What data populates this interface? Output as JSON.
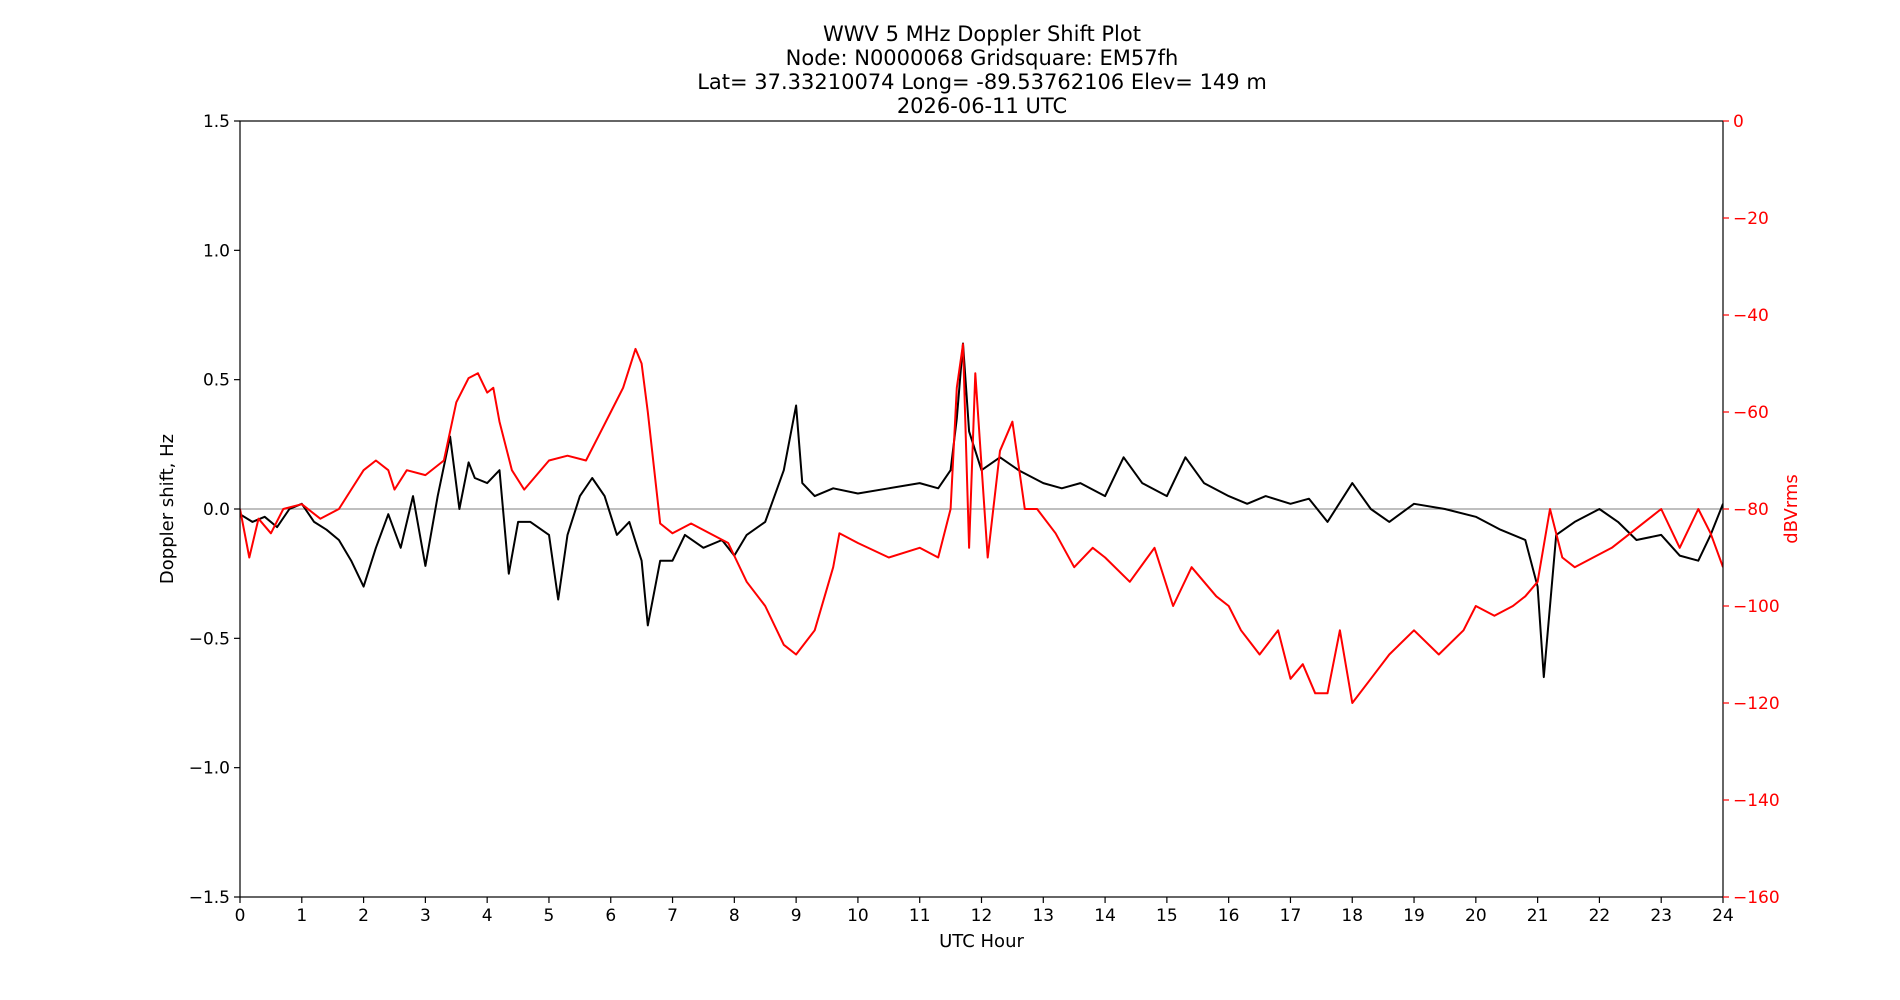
{
  "chart_data": {
    "type": "line",
    "title_lines": [
      "WWV 5 MHz Doppler Shift Plot",
      "Node:  N0000068     Gridsquare:  EM57fh",
      "Lat= 37.33210074    Long= -89.53762106    Elev= 149 m",
      "2026-06-11  UTC"
    ],
    "xlabel": "UTC Hour",
    "ylabel_left": "Doppler shift, Hz",
    "ylabel_right": "dBVrms",
    "xlim": [
      0,
      24
    ],
    "ylim_left": [
      -1.5,
      1.5
    ],
    "ylim_right": [
      -160,
      0
    ],
    "x_ticks": [
      "0",
      "1",
      "2",
      "3",
      "4",
      "5",
      "6",
      "7",
      "8",
      "9",
      "10",
      "11",
      "12",
      "13",
      "14",
      "15",
      "16",
      "17",
      "18",
      "19",
      "20",
      "21",
      "22",
      "23",
      "24"
    ],
    "y_ticks_left": [
      "1.5",
      "1.0",
      "0.5",
      "0.0",
      "−0.5",
      "−1.0",
      "−1.5"
    ],
    "y_ticks_right": [
      "0",
      "−20",
      "−40",
      "−60",
      "−80",
      "−100",
      "−120",
      "−140",
      "−160"
    ],
    "zero_line": 0.0,
    "colors": {
      "doppler": "#000000",
      "power": "#ff0000",
      "zero_line": "#999999",
      "axes": "#000000",
      "right_axis": "#ff0000"
    },
    "series": [
      {
        "axis": "left",
        "x": [
          0,
          0.2,
          0.4,
          0.6,
          0.8,
          1.0,
          1.2,
          1.4,
          1.6,
          1.8,
          2.0,
          2.2,
          2.4,
          2.6,
          2.8,
          3.0,
          3.2,
          3.4,
          3.55,
          3.7,
          3.8,
          4.0,
          4.2,
          4.35,
          4.5,
          4.7,
          5.0,
          5.15,
          5.3,
          5.5,
          5.7,
          5.9,
          6.1,
          6.3,
          6.5,
          6.6,
          6.8,
          7.0,
          7.2,
          7.5,
          7.8,
          8.0,
          8.2,
          8.5,
          8.8,
          9.0,
          9.1,
          9.3,
          9.6,
          10.0,
          10.5,
          11.0,
          11.3,
          11.5,
          11.6,
          11.7,
          11.8,
          12.0,
          12.3,
          12.6,
          13.0,
          13.3,
          13.6,
          14.0,
          14.3,
          14.6,
          15.0,
          15.3,
          15.6,
          16.0,
          16.3,
          16.6,
          17.0,
          17.3,
          17.6,
          18.0,
          18.3,
          18.6,
          19.0,
          19.5,
          20.0,
          20.4,
          20.8,
          21.0,
          21.1,
          21.3,
          21.6,
          22.0,
          22.3,
          22.6,
          23.0,
          23.3,
          23.6,
          23.8,
          24.0
        ],
        "y": [
          -0.02,
          -0.05,
          -0.03,
          -0.07,
          0.0,
          0.02,
          -0.05,
          -0.08,
          -0.12,
          -0.2,
          -0.3,
          -0.15,
          -0.02,
          -0.15,
          0.05,
          -0.22,
          0.05,
          0.28,
          0.0,
          0.18,
          0.12,
          0.1,
          0.15,
          -0.25,
          -0.05,
          -0.05,
          -0.1,
          -0.35,
          -0.1,
          0.05,
          0.12,
          0.05,
          -0.1,
          -0.05,
          -0.2,
          -0.45,
          -0.2,
          -0.2,
          -0.1,
          -0.15,
          -0.12,
          -0.18,
          -0.1,
          -0.05,
          0.15,
          0.4,
          0.1,
          0.05,
          0.08,
          0.06,
          0.08,
          0.1,
          0.08,
          0.15,
          0.35,
          0.64,
          0.3,
          0.15,
          0.2,
          0.15,
          0.1,
          0.08,
          0.1,
          0.05,
          0.2,
          0.1,
          0.05,
          0.2,
          0.1,
          0.05,
          0.02,
          0.05,
          0.02,
          0.04,
          -0.05,
          0.1,
          0.0,
          -0.05,
          0.02,
          0.0,
          -0.03,
          -0.08,
          -0.12,
          -0.3,
          -0.65,
          -0.1,
          -0.05,
          0.0,
          -0.05,
          -0.12,
          -0.1,
          -0.18,
          -0.2,
          -0.1,
          0.02
        ]
      },
      {
        "axis": "right",
        "x": [
          0,
          0.15,
          0.3,
          0.5,
          0.7,
          1.0,
          1.3,
          1.6,
          1.8,
          2.0,
          2.2,
          2.4,
          2.5,
          2.7,
          3.0,
          3.3,
          3.5,
          3.7,
          3.85,
          4.0,
          4.1,
          4.2,
          4.4,
          4.6,
          5.0,
          5.3,
          5.6,
          5.8,
          6.0,
          6.2,
          6.4,
          6.5,
          6.6,
          6.8,
          7.0,
          7.3,
          7.6,
          7.9,
          8.2,
          8.5,
          8.8,
          9.0,
          9.3,
          9.6,
          9.7,
          10.0,
          10.5,
          11.0,
          11.3,
          11.5,
          11.6,
          11.7,
          11.8,
          11.9,
          12.1,
          12.3,
          12.5,
          12.7,
          12.9,
          13.2,
          13.5,
          13.8,
          14.0,
          14.4,
          14.8,
          15.1,
          15.4,
          15.8,
          16.0,
          16.2,
          16.5,
          16.8,
          17.0,
          17.2,
          17.4,
          17.6,
          17.8,
          18.0,
          18.3,
          18.6,
          19.0,
          19.4,
          19.8,
          20.0,
          20.3,
          20.6,
          20.8,
          21.0,
          21.2,
          21.4,
          21.6,
          21.9,
          22.2,
          22.5,
          22.8,
          23.0,
          23.3,
          23.6,
          23.8,
          24.0
        ],
        "y": [
          -80,
          -90,
          -82,
          -85,
          -80,
          -79,
          -82,
          -80,
          -76,
          -72,
          -70,
          -72,
          -76,
          -72,
          -73,
          -70,
          -58,
          -53,
          -52,
          -56,
          -55,
          -62,
          -72,
          -76,
          -70,
          -69,
          -70,
          -65,
          -60,
          -55,
          -47,
          -50,
          -60,
          -83,
          -85,
          -83,
          -85,
          -87,
          -95,
          -100,
          -108,
          -110,
          -105,
          -92,
          -85,
          -87,
          -90,
          -88,
          -90,
          -80,
          -55,
          -46,
          -88,
          -52,
          -90,
          -68,
          -62,
          -80,
          -80,
          -85,
          -92,
          -88,
          -90,
          -95,
          -88,
          -100,
          -92,
          -98,
          -100,
          -105,
          -110,
          -105,
          -115,
          -112,
          -118,
          -118,
          -105,
          -120,
          -115,
          -110,
          -105,
          -110,
          -105,
          -100,
          -102,
          -100,
          -98,
          -95,
          -80,
          -90,
          -92,
          -90,
          -88,
          -85,
          -82,
          -80,
          -88,
          -80,
          -85,
          -92
        ]
      }
    ]
  }
}
